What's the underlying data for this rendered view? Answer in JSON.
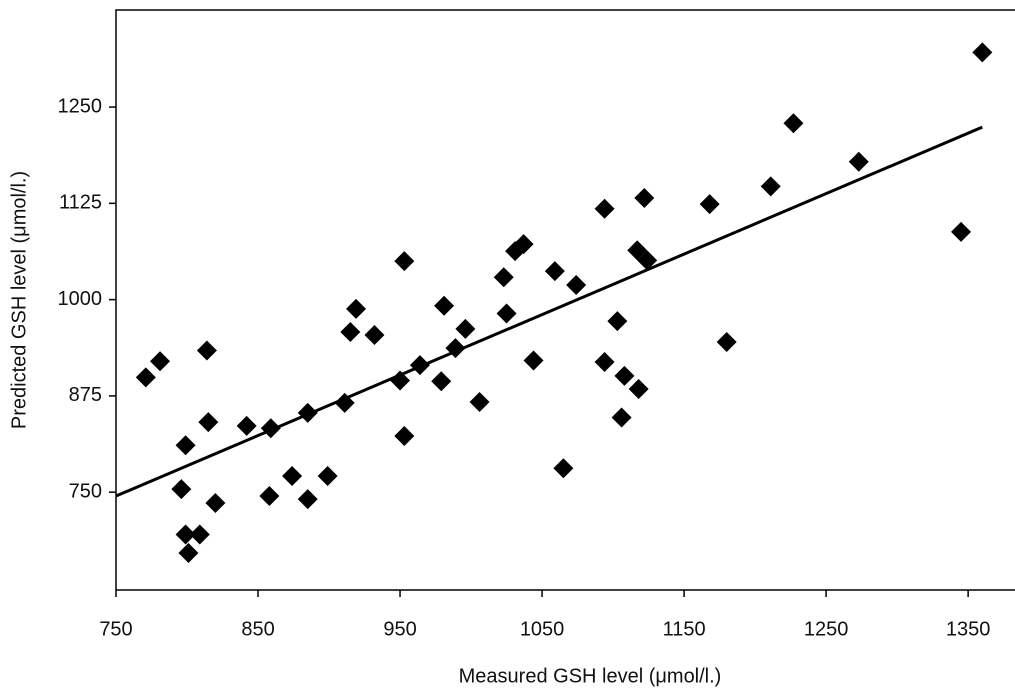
{
  "chart_data": {
    "type": "scatter",
    "x_label": "Measured GSH level (μmol/l.)",
    "y_label": "Predicted GSH level (μmol/l.)",
    "xlim": [
      750,
      1383
    ],
    "ylim": [
      623,
      1376
    ],
    "xticks": [
      750,
      850,
      950,
      1050,
      1150,
      1250,
      1350
    ],
    "yticks": [
      750,
      875,
      1000,
      1125,
      1250
    ],
    "color": "#000000",
    "x": [
      771,
      781,
      814,
      796,
      799,
      815,
      799,
      809,
      801,
      820,
      842,
      858,
      859,
      874,
      885,
      885,
      899,
      911,
      915,
      919,
      932,
      950,
      953,
      953,
      964,
      979,
      981,
      989,
      996,
      1006,
      1023,
      1025,
      1031,
      1037,
      1044,
      1059,
      1065,
      1074,
      1094,
      1094,
      1103,
      1108,
      1106,
      1118,
      1117,
      1122,
      1124,
      1168,
      1180,
      1211,
      1227,
      1273,
      1345,
      1360
    ],
    "values": [
      899,
      920,
      934,
      754,
      811,
      841,
      695,
      695,
      671,
      736,
      836,
      745,
      833,
      771,
      741,
      853,
      771,
      866,
      958,
      988,
      954,
      895,
      823,
      1050,
      915,
      894,
      992,
      937,
      962,
      867,
      1029,
      982,
      1063,
      1072,
      921,
      1037,
      781,
      1019,
      1118,
      919,
      972,
      901,
      847,
      884,
      1064,
      1132,
      1051,
      1124,
      945,
      1147,
      1229,
      1179,
      1088,
      1321
    ],
    "fit_line": {
      "x": [
        750,
        1360
      ],
      "values": [
        745,
        1224
      ]
    }
  }
}
